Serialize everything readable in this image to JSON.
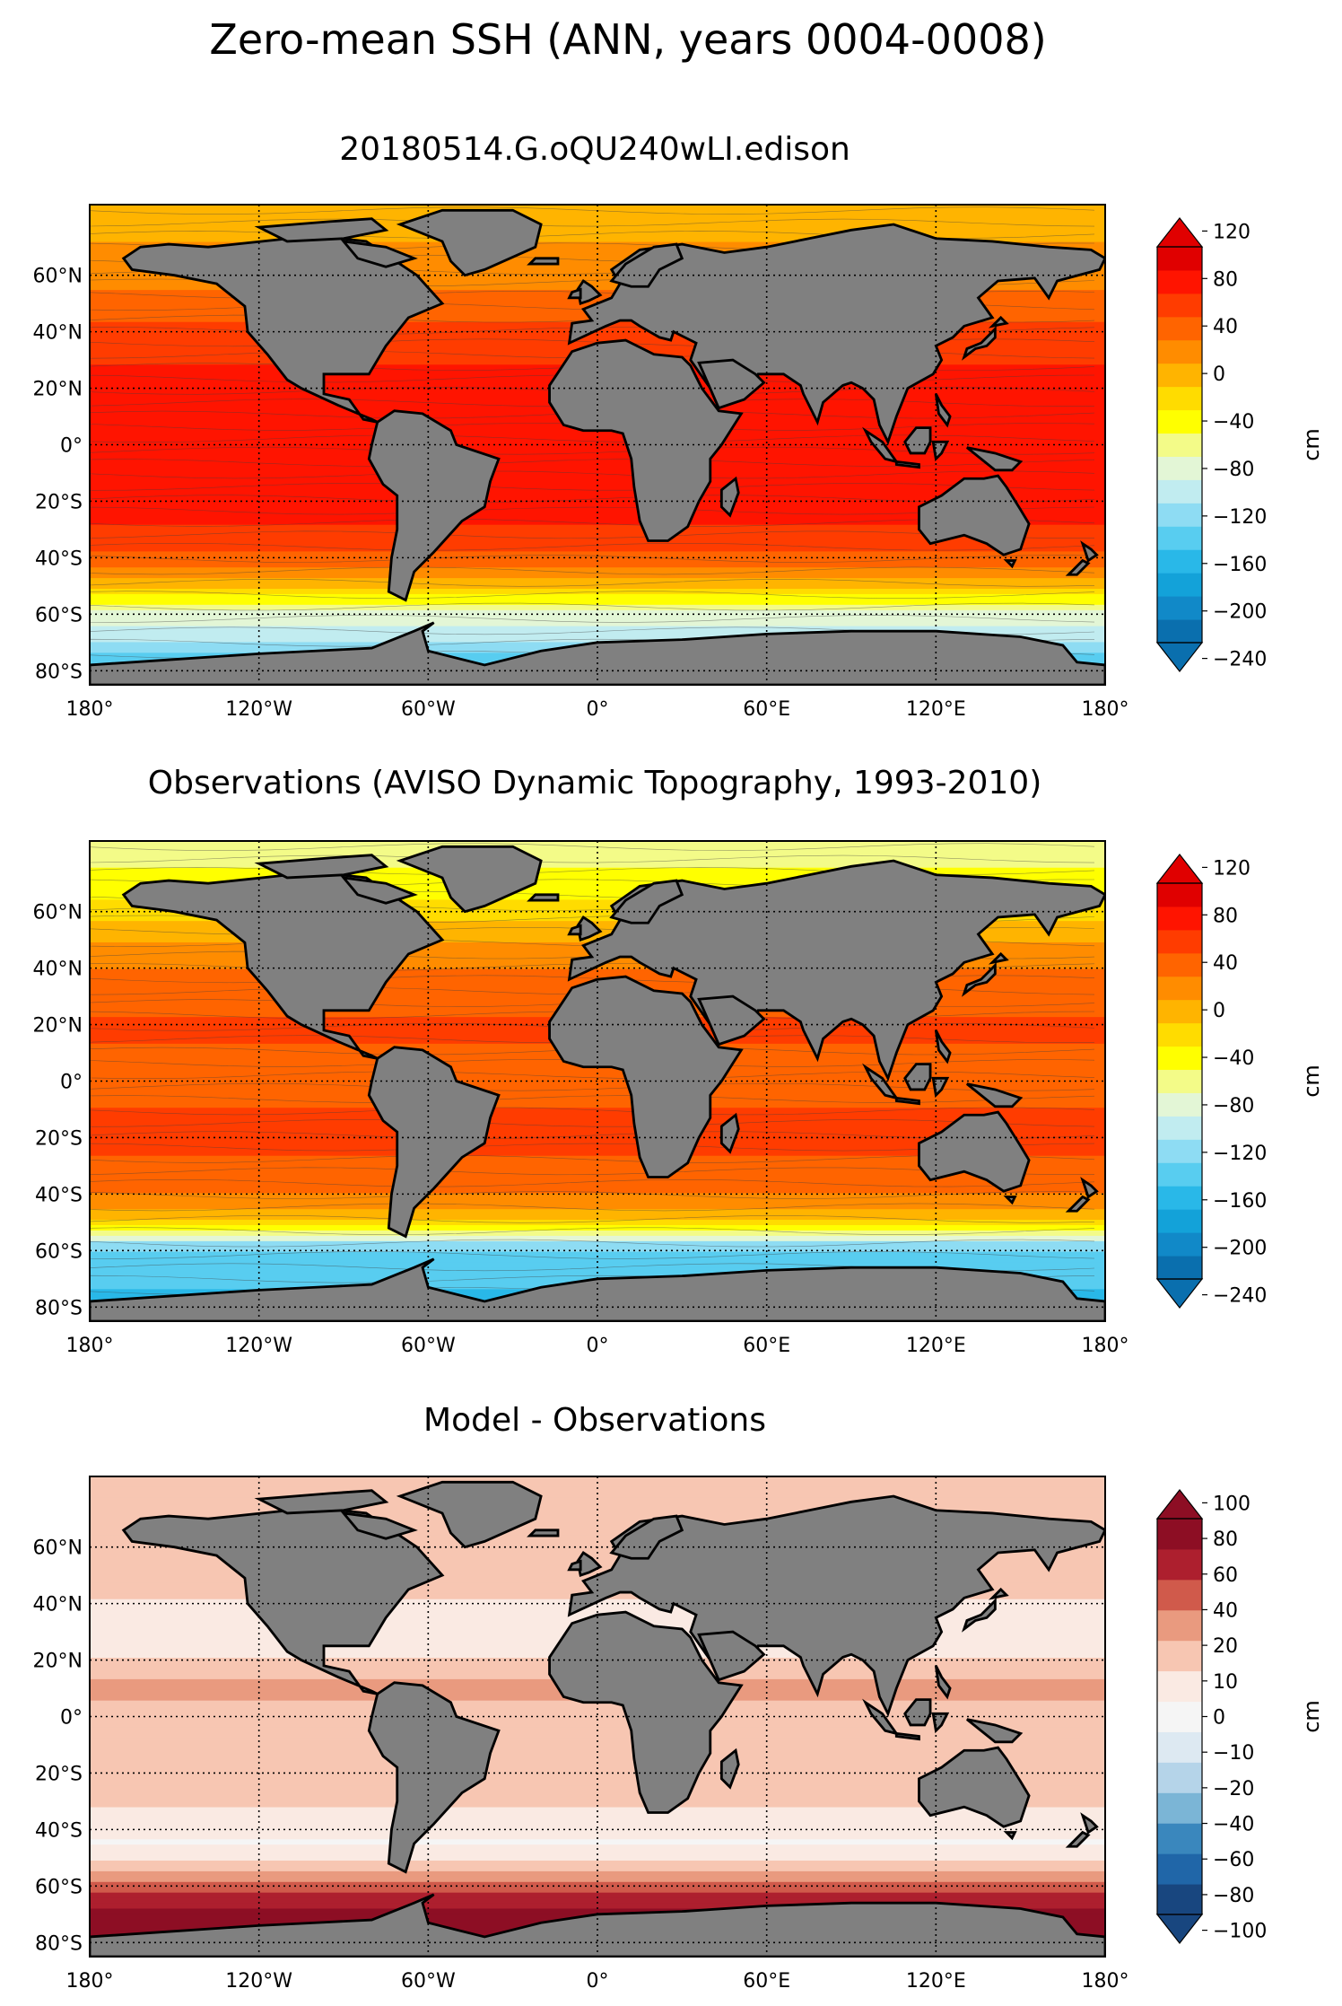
{
  "figure": {
    "title": "Zero-mean SSH (ANN, years 0004-0008)"
  },
  "axes": {
    "lon_ticks": [
      "180°",
      "120°W",
      "60°W",
      "0°",
      "60°E",
      "120°E",
      "180°"
    ],
    "lat_ticks": [
      "60°N",
      "40°N",
      "20°N",
      "0°",
      "20°S",
      "40°S",
      "60°S",
      "80°S"
    ],
    "lon_range": [
      -180,
      180
    ],
    "lat_range": [
      -85,
      85
    ]
  },
  "colors": {
    "land": "#808080",
    "coast": "#000000"
  },
  "chart_data": [
    {
      "type": "heatmap",
      "title": "20180514.G.oQU240wLI.edison",
      "variable": "Zero-mean sea surface height",
      "colorbar_label": "cm",
      "colorbar_ticks": [
        "120",
        "80",
        "40",
        "0",
        "−40",
        "−80",
        "−120",
        "−160",
        "−200",
        "−240"
      ],
      "colorbar_range": [
        -240,
        120
      ],
      "extend": "both",
      "palette": [
        "#0a6fae",
        "#1189c8",
        "#13a2d9",
        "#29b8e8",
        "#58cdf0",
        "#8edcf3",
        "#c1ecf0",
        "#e3f6d6",
        "#f3fb88",
        "#ffff00",
        "#ffdc00",
        "#ffb400",
        "#ff8c00",
        "#ff6400",
        "#ff3c00",
        "#ff1400",
        "#e00000"
      ],
      "zonal_profile": [
        {
          "lat": 80,
          "value": 5
        },
        {
          "lat": 60,
          "value": 25
        },
        {
          "lat": 45,
          "value": 55
        },
        {
          "lat": 30,
          "value": 75
        },
        {
          "lat": 15,
          "value": 92
        },
        {
          "lat": 0,
          "value": 85
        },
        {
          "lat": -15,
          "value": 95
        },
        {
          "lat": -30,
          "value": 75
        },
        {
          "lat": -40,
          "value": 50
        },
        {
          "lat": -50,
          "value": 0
        },
        {
          "lat": -55,
          "value": -40
        },
        {
          "lat": -60,
          "value": -80
        },
        {
          "lat": -70,
          "value": -110
        },
        {
          "lat": -80,
          "value": -170
        }
      ]
    },
    {
      "type": "heatmap",
      "title": "Observations (AVISO Dynamic Topography, 1993-2010)",
      "variable": "Dynamic topography",
      "colorbar_label": "cm",
      "colorbar_ticks": [
        "120",
        "80",
        "40",
        "0",
        "−40",
        "−80",
        "−120",
        "−160",
        "−200",
        "−240"
      ],
      "colorbar_range": [
        -240,
        120
      ],
      "extend": "both",
      "palette": [
        "#0a6fae",
        "#1189c8",
        "#13a2d9",
        "#29b8e8",
        "#58cdf0",
        "#8edcf3",
        "#c1ecf0",
        "#e3f6d6",
        "#f3fb88",
        "#ffff00",
        "#ffdc00",
        "#ffb400",
        "#ff8c00",
        "#ff6400",
        "#ff3c00",
        "#ff1400",
        "#e00000"
      ],
      "zonal_profile": [
        {
          "lat": 80,
          "value": -60
        },
        {
          "lat": 65,
          "value": -30
        },
        {
          "lat": 50,
          "value": 10
        },
        {
          "lat": 35,
          "value": 45
        },
        {
          "lat": 20,
          "value": 60
        },
        {
          "lat": 0,
          "value": 50
        },
        {
          "lat": -20,
          "value": 65
        },
        {
          "lat": -35,
          "value": 45
        },
        {
          "lat": -45,
          "value": 25
        },
        {
          "lat": -52,
          "value": -40
        },
        {
          "lat": -58,
          "value": -120
        },
        {
          "lat": -65,
          "value": -150
        },
        {
          "lat": -80,
          "value": -160
        }
      ]
    },
    {
      "type": "heatmap",
      "title": "Model - Observations",
      "variable": "SSH difference",
      "colorbar_label": "cm",
      "colorbar_ticks": [
        "100",
        "80",
        "60",
        "40",
        "20",
        "10",
        "0",
        "−10",
        "−20",
        "−40",
        "−60",
        "−80",
        "−100"
      ],
      "colorbar_range": [
        -100,
        100
      ],
      "extend": "both",
      "palette": [
        "#18467f",
        "#2066a8",
        "#3a87bd",
        "#7bb5d6",
        "#b5d4e9",
        "#dde9f2",
        "#f5f5f5",
        "#faeae3",
        "#f7c6b2",
        "#e99a7f",
        "#d05a4b",
        "#ad1f2e",
        "#8d0e24"
      ],
      "zonal_profile": [
        {
          "lat": 80,
          "value": 30
        },
        {
          "lat": 60,
          "value": 35
        },
        {
          "lat": 45,
          "value": 25
        },
        {
          "lat": 25,
          "value": 15
        },
        {
          "lat": 10,
          "value": 45
        },
        {
          "lat": 0,
          "value": 30
        },
        {
          "lat": -15,
          "value": 35
        },
        {
          "lat": -30,
          "value": 25
        },
        {
          "lat": -45,
          "value": 5
        },
        {
          "lat": -55,
          "value": 35
        },
        {
          "lat": -62,
          "value": 70
        },
        {
          "lat": -70,
          "value": 90
        },
        {
          "lat": -80,
          "value": 100
        }
      ]
    }
  ]
}
